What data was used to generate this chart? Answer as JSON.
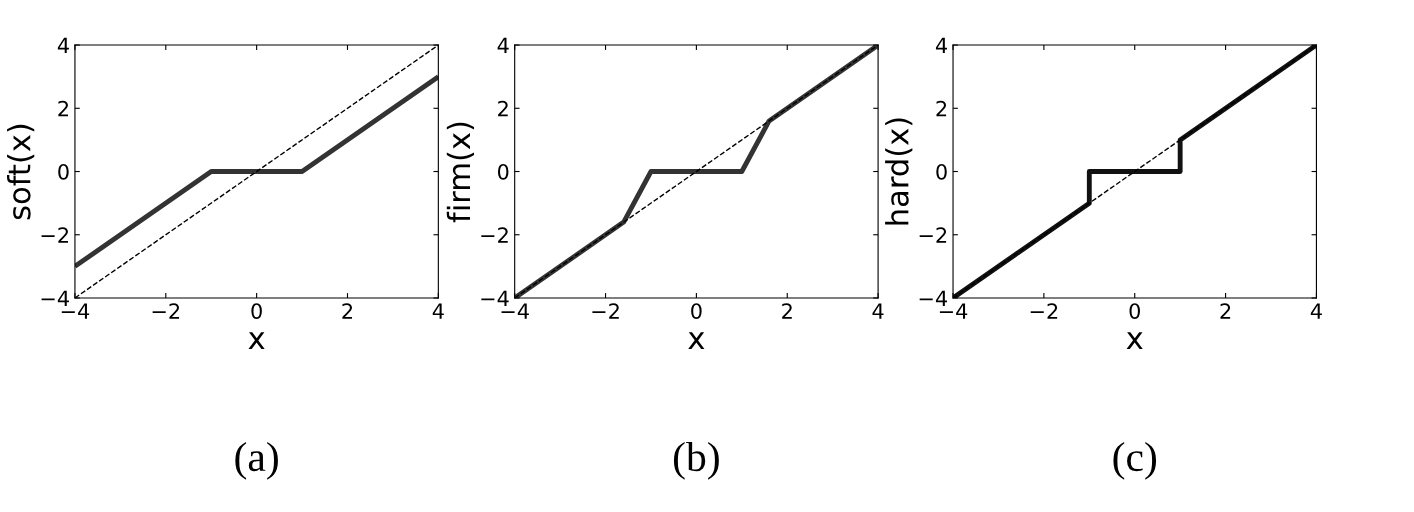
{
  "chart_data": [
    {
      "type": "line",
      "ylabel": "soft(x)",
      "xlabel": "x",
      "annotations": [
        "(a)"
      ],
      "xlim": [
        -4,
        4
      ],
      "ylim": [
        -4,
        4
      ],
      "xticks": [
        -4,
        -2,
        0,
        2,
        4
      ],
      "yticks": [
        -4,
        -2,
        0,
        2,
        4
      ],
      "grid": false,
      "legend": false,
      "marker": "none",
      "series": [
        {
          "color": "#000000",
          "line_style": "dashed",
          "x": [
            -4,
            4
          ],
          "values": [
            -4,
            4
          ]
        },
        {
          "color": "#333333",
          "line_style": "solid",
          "x": [
            -4,
            -1,
            1,
            4
          ],
          "values": [
            -3,
            0,
            0,
            3
          ]
        }
      ]
    },
    {
      "type": "line",
      "ylabel": "firm(x)",
      "xlabel": "x",
      "annotations": [
        "(b)"
      ],
      "xlim": [
        -4,
        4
      ],
      "ylim": [
        -4,
        4
      ],
      "xticks": [
        -4,
        -2,
        0,
        2,
        4
      ],
      "yticks": [
        -4,
        -2,
        0,
        2,
        4
      ],
      "grid": false,
      "legend": false,
      "marker": "none",
      "series": [
        {
          "color": "#000000",
          "line_style": "dashed",
          "x": [
            -4,
            4
          ],
          "values": [
            -4,
            4
          ]
        },
        {
          "color": "#333333",
          "line_style": "solid",
          "x": [
            -4,
            -1.6,
            -1,
            1,
            1.6,
            4
          ],
          "values": [
            -4,
            -1.6,
            0,
            0,
            1.6,
            4
          ]
        }
      ]
    },
    {
      "type": "line",
      "ylabel": "hard(x)",
      "xlabel": "x",
      "annotations": [
        "(c)"
      ],
      "xlim": [
        -4,
        4
      ],
      "ylim": [
        -4,
        4
      ],
      "xticks": [
        -4,
        -2,
        0,
        2,
        4
      ],
      "yticks": [
        -4,
        -2,
        0,
        2,
        4
      ],
      "grid": false,
      "legend": false,
      "marker": "none",
      "series": [
        {
          "color": "#000000",
          "line_style": "dashed",
          "x": [
            -4,
            4
          ],
          "values": [
            -4,
            4
          ]
        },
        {
          "color": "#111111",
          "line_style": "solid",
          "x": [
            -4,
            -1,
            -1,
            1,
            1,
            4
          ],
          "values": [
            -4,
            -1,
            0,
            0,
            1,
            4
          ]
        }
      ]
    }
  ]
}
